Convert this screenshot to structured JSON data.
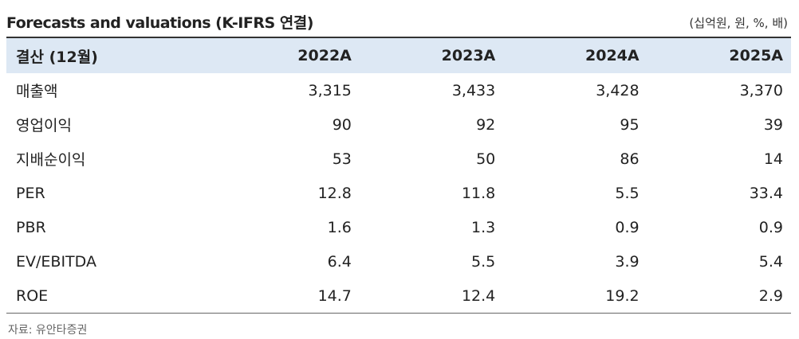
{
  "header": {
    "title": "Forecasts and valuations (K-IFRS 연결)",
    "unit": "(십억원, 원, %, 배)"
  },
  "table": {
    "columns": [
      "결산 (12월)",
      "2022A",
      "2023A",
      "2024A",
      "2025A"
    ],
    "rows": [
      [
        "매출액",
        "3,315",
        "3,433",
        "3,428",
        "3,370"
      ],
      [
        "영업이익",
        "90",
        "92",
        "95",
        "39"
      ],
      [
        "지배순이익",
        "53",
        "50",
        "86",
        "14"
      ],
      [
        "PER",
        "12.8",
        "11.8",
        "5.5",
        "33.4"
      ],
      [
        "PBR",
        "1.6",
        "1.3",
        "0.9",
        "0.9"
      ],
      [
        "EV/EBITDA",
        "6.4",
        "5.5",
        "3.9",
        "5.4"
      ],
      [
        "ROE",
        "14.7",
        "12.4",
        "19.2",
        "2.9"
      ]
    ]
  },
  "source": "자료: 유안타증권"
}
